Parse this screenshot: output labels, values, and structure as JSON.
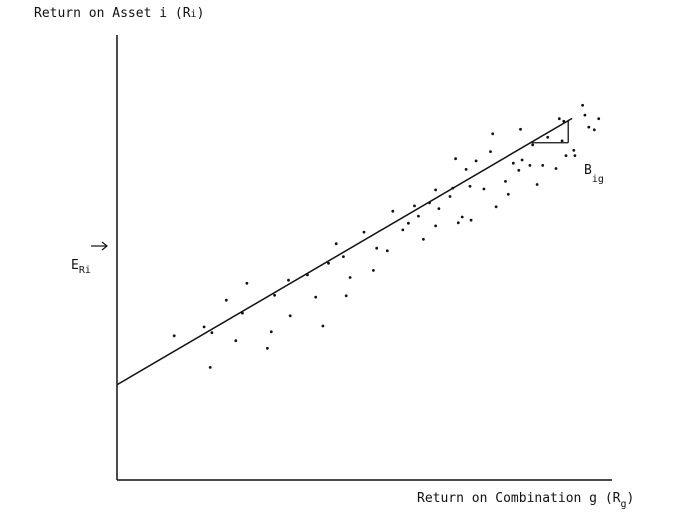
{
  "chart_data": {
    "type": "scatter",
    "y_axis_label": {
      "text": "Return on Asset i (R",
      "sub": "i",
      "close": ")"
    },
    "x_axis_label": {
      "text": "Return on Combination g (R",
      "sub": "g",
      "close": ")"
    },
    "expected_return_label": {
      "main": "E",
      "sub": "Ri"
    },
    "slope_label": {
      "main": "B",
      "sub": "ig"
    },
    "xlim": [
      0,
      100
    ],
    "ylim": [
      0,
      100
    ],
    "grid": false,
    "regression_line": {
      "intercept": 21.4,
      "slope": 0.73,
      "x_start": 0,
      "x_end": 82
    },
    "series": [
      {
        "points": [
          [
            10.3,
            32.4
          ],
          [
            15.7,
            34.4
          ],
          [
            17.1,
            33.1
          ],
          [
            16.8,
            25.3
          ],
          [
            19.7,
            40.4
          ],
          [
            21.4,
            31.3
          ],
          [
            23.4,
            44.2
          ],
          [
            22.6,
            37.5
          ],
          [
            27.1,
            29.6
          ],
          [
            28.4,
            41.5
          ],
          [
            27.8,
            33.3
          ],
          [
            30.9,
            44.9
          ],
          [
            31.2,
            36.9
          ],
          [
            34.3,
            46.1
          ],
          [
            35.8,
            41.1
          ],
          [
            37.1,
            34.6
          ],
          [
            38.1,
            48.7
          ],
          [
            39.5,
            53.1
          ],
          [
            41.3,
            41.4
          ],
          [
            42.0,
            45.5
          ],
          [
            40.8,
            50.2
          ],
          [
            44.5,
            55.7
          ],
          [
            46.2,
            47.1
          ],
          [
            46.8,
            52.1
          ],
          [
            49.7,
            60.4
          ],
          [
            48.7,
            51.5
          ],
          [
            52.5,
            57.7
          ],
          [
            53.6,
            61.6
          ],
          [
            51.5,
            56.2
          ],
          [
            54.3,
            59.3
          ],
          [
            55.2,
            54.1
          ],
          [
            56.3,
            62.3
          ],
          [
            57.4,
            65.2
          ],
          [
            58.0,
            61.0
          ],
          [
            57.4,
            57.1
          ],
          [
            60.0,
            63.7
          ],
          [
            60.5,
            65.6
          ],
          [
            62.2,
            59.1
          ],
          [
            61.0,
            72.2
          ],
          [
            62.9,
            69.8
          ],
          [
            63.6,
            66.0
          ],
          [
            61.5,
            57.8
          ],
          [
            64.7,
            71.7
          ],
          [
            63.8,
            58.4
          ],
          [
            66.1,
            65.4
          ],
          [
            67.3,
            73.8
          ],
          [
            68.3,
            61.4
          ],
          [
            70.0,
            67.1
          ],
          [
            67.7,
            77.8
          ],
          [
            70.5,
            64.2
          ],
          [
            71.4,
            71.2
          ],
          [
            73.0,
            71.9
          ],
          [
            72.4,
            69.6
          ],
          [
            72.7,
            78.8
          ],
          [
            74.4,
            70.7
          ],
          [
            74.9,
            75.3
          ],
          [
            75.7,
            66.4
          ],
          [
            76.7,
            70.7
          ],
          [
            79.7,
            81.2
          ],
          [
            79.1,
            70.0
          ],
          [
            77.6,
            77.0
          ],
          [
            80.9,
            72.9
          ],
          [
            80.2,
            76.2
          ],
          [
            82.3,
            74.1
          ],
          [
            80.5,
            80.6
          ],
          [
            84.3,
            82.0
          ],
          [
            85.0,
            79.3
          ],
          [
            86.0,
            78.7
          ],
          [
            86.8,
            81.2
          ],
          [
            83.9,
            84.2
          ],
          [
            82.5,
            72.9
          ]
        ]
      }
    ]
  }
}
